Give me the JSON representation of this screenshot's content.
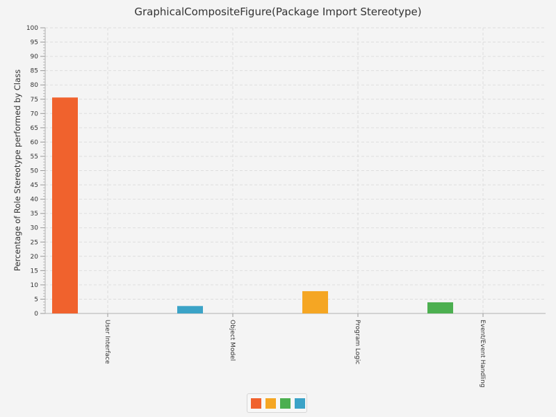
{
  "chart_data": {
    "type": "bar",
    "title": "GraphicalCompositeFigure(Package Import Stereotype)",
    "ylabel": "Percentage of Role Stereotype performed by Class",
    "xlabel": "",
    "ylim": [
      0,
      100
    ],
    "y_ticks": [
      0,
      5,
      10,
      15,
      20,
      25,
      30,
      35,
      40,
      45,
      50,
      55,
      60,
      65,
      70,
      75,
      80,
      85,
      90,
      95,
      100
    ],
    "y_tick_labels": [
      "0",
      "5",
      "10",
      "15",
      "20",
      "25",
      "30",
      "35",
      "40",
      "45",
      "50",
      "55",
      "60",
      "65",
      "70",
      "75",
      "80",
      "85",
      "90",
      "95",
      "100"
    ],
    "grid": true,
    "legend_position": "bottom",
    "categories": [
      "User Interface",
      "Object Model",
      "Program Logic",
      "Event/Event Handling"
    ],
    "series": [
      {
        "color": "#f0622d",
        "values": [
          75.6,
          0,
          0,
          0
        ]
      },
      {
        "color": "#f5a623",
        "values": [
          0,
          0,
          7.8,
          0
        ]
      },
      {
        "color": "#4caf50",
        "values": [
          0,
          0,
          0,
          3.9
        ]
      },
      {
        "color": "#3ba3c7",
        "values": [
          0,
          2.6,
          0,
          0
        ]
      }
    ]
  }
}
